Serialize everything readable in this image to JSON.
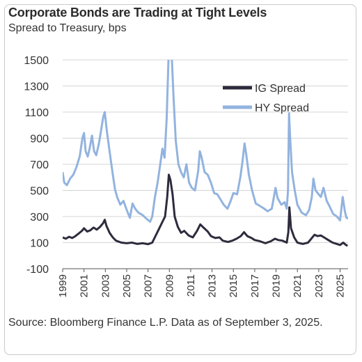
{
  "title": "Corporate Bonds are Trading at Tight Levels",
  "subtitle": "Spread to Treasury, bps",
  "source": "Source: Bloomberg Finance L.P. Data as of September 3, 2025.",
  "colors": {
    "ig": "#2e2b3d",
    "hy": "#92b3df",
    "axis": "#555555",
    "grid": "#d4d4d4"
  },
  "chart_data": {
    "type": "line",
    "title": "Corporate Bonds are Trading at Tight Levels",
    "ylabel": "Spread to Treasury, bps",
    "xlabel": "",
    "xlim": [
      1999,
      2025.75
    ],
    "ylim": [
      -100,
      1500
    ],
    "y_ticks": [
      -100,
      100,
      300,
      500,
      700,
      900,
      1100,
      1300,
      1500
    ],
    "x_ticks": [
      1999,
      2001,
      2003,
      2005,
      2007,
      2009,
      2011,
      2013,
      2015,
      2017,
      2019,
      2021,
      2023,
      2025
    ],
    "legend_position": "top-right",
    "grid": "horizontal",
    "series": [
      {
        "name": "IG Spread",
        "color": "#2e2b3d",
        "points": [
          [
            1999.0,
            140
          ],
          [
            1999.3,
            130
          ],
          [
            1999.6,
            145
          ],
          [
            1999.9,
            135
          ],
          [
            2000.2,
            150
          ],
          [
            2000.5,
            170
          ],
          [
            2000.8,
            190
          ],
          [
            2001.0,
            210
          ],
          [
            2001.3,
            185
          ],
          [
            2001.6,
            195
          ],
          [
            2001.9,
            215
          ],
          [
            2002.2,
            200
          ],
          [
            2002.5,
            220
          ],
          [
            2002.8,
            250
          ],
          [
            2002.95,
            275
          ],
          [
            2003.1,
            230
          ],
          [
            2003.4,
            175
          ],
          [
            2003.7,
            140
          ],
          [
            2004.0,
            115
          ],
          [
            2004.5,
            100
          ],
          [
            2005.0,
            95
          ],
          [
            2005.5,
            100
          ],
          [
            2006.0,
            90
          ],
          [
            2006.5,
            95
          ],
          [
            2007.0,
            88
          ],
          [
            2007.4,
            100
          ],
          [
            2007.7,
            150
          ],
          [
            2008.0,
            200
          ],
          [
            2008.3,
            250
          ],
          [
            2008.6,
            300
          ],
          [
            2008.8,
            450
          ],
          [
            2008.95,
            620
          ],
          [
            2009.1,
            580
          ],
          [
            2009.3,
            470
          ],
          [
            2009.5,
            300
          ],
          [
            2009.8,
            220
          ],
          [
            2010.1,
            175
          ],
          [
            2010.4,
            190
          ],
          [
            2010.8,
            155
          ],
          [
            2011.2,
            140
          ],
          [
            2011.6,
            190
          ],
          [
            2011.9,
            240
          ],
          [
            2012.2,
            215
          ],
          [
            2012.6,
            185
          ],
          [
            2012.9,
            150
          ],
          [
            2013.3,
            135
          ],
          [
            2013.7,
            140
          ],
          [
            2014.0,
            115
          ],
          [
            2014.5,
            105
          ],
          [
            2014.9,
            115
          ],
          [
            2015.3,
            130
          ],
          [
            2015.7,
            150
          ],
          [
            2016.0,
            180
          ],
          [
            2016.3,
            150
          ],
          [
            2016.7,
            135
          ],
          [
            2017.0,
            120
          ],
          [
            2017.5,
            110
          ],
          [
            2018.0,
            95
          ],
          [
            2018.5,
            110
          ],
          [
            2018.9,
            130
          ],
          [
            2019.2,
            120
          ],
          [
            2019.6,
            115
          ],
          [
            2020.0,
            100
          ],
          [
            2020.15,
            180
          ],
          [
            2020.25,
            370
          ],
          [
            2020.4,
            210
          ],
          [
            2020.7,
            140
          ],
          [
            2021.0,
            100
          ],
          [
            2021.5,
            90
          ],
          [
            2022.0,
            100
          ],
          [
            2022.3,
            130
          ],
          [
            2022.6,
            160
          ],
          [
            2022.9,
            150
          ],
          [
            2023.2,
            155
          ],
          [
            2023.5,
            140
          ],
          [
            2023.9,
            120
          ],
          [
            2024.3,
            100
          ],
          [
            2024.7,
            90
          ],
          [
            2025.0,
            82
          ],
          [
            2025.3,
            100
          ],
          [
            2025.5,
            85
          ],
          [
            2025.7,
            75
          ]
        ]
      },
      {
        "name": "HY Spread",
        "color": "#92b3df",
        "points": [
          [
            1999.0,
            640
          ],
          [
            1999.15,
            560
          ],
          [
            1999.4,
            540
          ],
          [
            1999.7,
            590
          ],
          [
            2000.0,
            620
          ],
          [
            2000.3,
            680
          ],
          [
            2000.6,
            760
          ],
          [
            2000.85,
            900
          ],
          [
            2001.0,
            940
          ],
          [
            2001.15,
            800
          ],
          [
            2001.35,
            760
          ],
          [
            2001.55,
            830
          ],
          [
            2001.75,
            920
          ],
          [
            2001.95,
            800
          ],
          [
            2002.15,
            770
          ],
          [
            2002.4,
            860
          ],
          [
            2002.6,
            960
          ],
          [
            2002.8,
            1060
          ],
          [
            2002.95,
            1100
          ],
          [
            2003.15,
            950
          ],
          [
            2003.4,
            800
          ],
          [
            2003.65,
            650
          ],
          [
            2003.9,
            510
          ],
          [
            2004.1,
            450
          ],
          [
            2004.4,
            390
          ],
          [
            2004.7,
            420
          ],
          [
            2005.0,
            350
          ],
          [
            2005.3,
            290
          ],
          [
            2005.55,
            400
          ],
          [
            2005.8,
            360
          ],
          [
            2006.1,
            330
          ],
          [
            2006.5,
            310
          ],
          [
            2006.9,
            280
          ],
          [
            2007.2,
            260
          ],
          [
            2007.4,
            300
          ],
          [
            2007.65,
            450
          ],
          [
            2007.9,
            560
          ],
          [
            2008.15,
            700
          ],
          [
            2008.35,
            820
          ],
          [
            2008.55,
            750
          ],
          [
            2008.75,
            1050
          ],
          [
            2008.9,
            1450
          ],
          [
            2009.0,
            1700
          ],
          [
            2009.2,
            1580
          ],
          [
            2009.4,
            1200
          ],
          [
            2009.6,
            880
          ],
          [
            2009.85,
            700
          ],
          [
            2010.1,
            640
          ],
          [
            2010.35,
            600
          ],
          [
            2010.6,
            700
          ],
          [
            2010.85,
            560
          ],
          [
            2011.1,
            520
          ],
          [
            2011.4,
            500
          ],
          [
            2011.7,
            650
          ],
          [
            2011.85,
            800
          ],
          [
            2012.0,
            760
          ],
          [
            2012.3,
            640
          ],
          [
            2012.6,
            620
          ],
          [
            2012.9,
            560
          ],
          [
            2013.2,
            480
          ],
          [
            2013.5,
            470
          ],
          [
            2013.8,
            430
          ],
          [
            2014.1,
            390
          ],
          [
            2014.45,
            360
          ],
          [
            2014.75,
            420
          ],
          [
            2015.0,
            480
          ],
          [
            2015.35,
            470
          ],
          [
            2015.65,
            600
          ],
          [
            2015.85,
            720
          ],
          [
            2016.05,
            860
          ],
          [
            2016.2,
            780
          ],
          [
            2016.45,
            620
          ],
          [
            2016.75,
            500
          ],
          [
            2017.1,
            400
          ],
          [
            2017.5,
            380
          ],
          [
            2017.9,
            360
          ],
          [
            2018.2,
            340
          ],
          [
            2018.6,
            360
          ],
          [
            2018.95,
            520
          ],
          [
            2019.15,
            440
          ],
          [
            2019.5,
            390
          ],
          [
            2019.8,
            410
          ],
          [
            2020.0,
            360
          ],
          [
            2020.12,
            500
          ],
          [
            2020.22,
            1090
          ],
          [
            2020.32,
            900
          ],
          [
            2020.5,
            640
          ],
          [
            2020.75,
            500
          ],
          [
            2021.0,
            390
          ],
          [
            2021.4,
            330
          ],
          [
            2021.8,
            310
          ],
          [
            2022.1,
            350
          ],
          [
            2022.35,
            450
          ],
          [
            2022.5,
            590
          ],
          [
            2022.7,
            500
          ],
          [
            2022.9,
            480
          ],
          [
            2023.2,
            450
          ],
          [
            2023.45,
            520
          ],
          [
            2023.75,
            420
          ],
          [
            2024.0,
            380
          ],
          [
            2024.35,
            320
          ],
          [
            2024.7,
            300
          ],
          [
            2025.0,
            270
          ],
          [
            2025.25,
            450
          ],
          [
            2025.45,
            340
          ],
          [
            2025.6,
            290
          ],
          [
            2025.75,
            285
          ]
        ]
      }
    ]
  }
}
